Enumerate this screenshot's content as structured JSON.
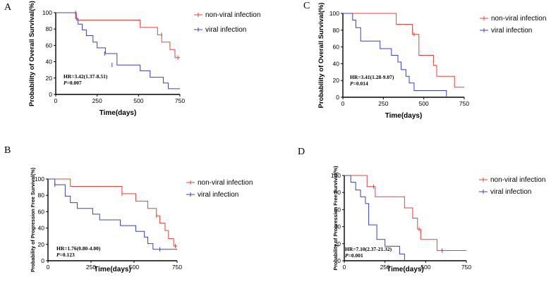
{
  "figure": {
    "colors": {
      "non_viral": "#e8413a",
      "viral": "#3b3fd1"
    }
  },
  "chart_data": [
    {
      "type": "line",
      "subtype": "kaplan-meier",
      "panel": "A",
      "xlabel": "Time(days)",
      "ylabel": "Probability of Overall Survival(%)",
      "xlim": [
        0,
        750
      ],
      "ylim": [
        0,
        100
      ],
      "xticks": [
        0,
        250,
        500,
        750
      ],
      "yticks": [
        0,
        20,
        40,
        60,
        80,
        100
      ],
      "hr_text": "HR=3.42(1.37-8.51)",
      "p_label": "P",
      "p_value": "=0.007",
      "series": [
        {
          "name": "non-viral infection",
          "color": "#e8413a",
          "x": [
            0,
            125,
            510,
            615,
            640,
            690,
            720,
            740,
            750
          ],
          "y": [
            100,
            91,
            82,
            73,
            64,
            55,
            45,
            45,
            45
          ],
          "censored": [
            [
              120,
              100
            ],
            [
              640,
              73
            ],
            [
              738,
              45
            ]
          ]
        },
        {
          "name": "viral infection",
          "color": "#3b3fd1",
          "x": [
            0,
            120,
            135,
            160,
            185,
            225,
            250,
            300,
            370,
            510,
            570,
            650,
            680,
            750
          ],
          "y": [
            100,
            93,
            86,
            79,
            72,
            64,
            57,
            50,
            36,
            29,
            21,
            14,
            7,
            7
          ],
          "censored": [
            [
              295,
              50
            ],
            [
              340,
              36
            ]
          ]
        }
      ]
    },
    {
      "type": "line",
      "subtype": "kaplan-meier",
      "panel": "B",
      "xlabel": "Time(days)",
      "ylabel": "Probability of Progression Free Survival(%)",
      "xlim": [
        0,
        750
      ],
      "ylim": [
        0,
        100
      ],
      "xticks": [
        0,
        250,
        500,
        750
      ],
      "yticks": [
        0,
        20,
        40,
        60,
        80,
        100
      ],
      "hr_text": "HR=1.76(0.80-4.00)",
      "p_label": "P",
      "p_value": "=0.123",
      "series": [
        {
          "name": "non-viral infection",
          "color": "#e8413a",
          "x": [
            0,
            130,
            430,
            510,
            580,
            630,
            650,
            680,
            700,
            730,
            750
          ],
          "y": [
            100,
            91,
            82,
            73,
            64,
            55,
            46,
            37,
            27,
            18,
            18
          ],
          "censored": [
            [
              430,
              82
            ],
            [
              630,
              55
            ],
            [
              740,
              18
            ]
          ]
        },
        {
          "name": "viral infection",
          "color": "#3b3fd1",
          "x": [
            0,
            40,
            100,
            130,
            170,
            260,
            300,
            420,
            510,
            560,
            580,
            610,
            750
          ],
          "y": [
            100,
            93,
            79,
            71,
            64,
            57,
            50,
            43,
            36,
            29,
            21,
            14,
            14
          ],
          "censored": [
            [
              40,
              93
            ],
            [
              650,
              14
            ]
          ]
        }
      ]
    },
    {
      "type": "line",
      "subtype": "kaplan-meier",
      "panel": "C",
      "xlabel": "Time(days)",
      "ylabel": "Probability of  Overall Survival(%)",
      "xlim": [
        0,
        750
      ],
      "ylim": [
        0,
        100
      ],
      "xticks": [
        0,
        250,
        500,
        750
      ],
      "yticks": [
        0,
        20,
        40,
        60,
        80,
        100
      ],
      "hr_text": "HR=3.41(1.28-9.07)",
      "p_label": "P",
      "p_value": "=0.014",
      "series": [
        {
          "name": "non-viral infection",
          "color": "#e8413a",
          "x": [
            0,
            330,
            430,
            470,
            560,
            580,
            690,
            750
          ],
          "y": [
            100,
            87,
            75,
            50,
            38,
            25,
            12,
            12
          ],
          "censored": [
            [
              440,
              75
            ]
          ]
        },
        {
          "name": "viral infection",
          "color": "#3b3fd1",
          "x": [
            0,
            60,
            80,
            110,
            230,
            300,
            340,
            360,
            390,
            410,
            440,
            640
          ],
          "y": [
            100,
            92,
            83,
            67,
            58,
            50,
            42,
            33,
            25,
            17,
            8,
            0
          ],
          "censored": []
        }
      ]
    },
    {
      "type": "line",
      "subtype": "kaplan-meier",
      "panel": "D",
      "xlabel": "Time(days)",
      "ylabel": "Probability of Progression Free Survival(%)",
      "xlim": [
        0,
        750
      ],
      "ylim": [
        0,
        100
      ],
      "xticks": [
        0,
        250,
        500,
        750
      ],
      "yticks": [
        0,
        20,
        40,
        60,
        80,
        100
      ],
      "hr_text": "HR=7.10(2.37-21.32)",
      "p_label": "P",
      "p_value": "=0.001",
      "series": [
        {
          "name": "non-viral infection",
          "color": "#e8413a",
          "x": [
            0,
            140,
            190,
            370,
            420,
            450,
            470,
            570,
            750
          ],
          "y": [
            100,
            87,
            75,
            62,
            50,
            37,
            25,
            12,
            12
          ],
          "censored": [
            [
              180,
              87
            ],
            [
              460,
              37
            ],
            [
              600,
              12
            ]
          ]
        },
        {
          "name": "viral infection",
          "color": "#3b3fd1",
          "x": [
            0,
            40,
            70,
            100,
            130,
            150,
            200,
            250,
            340,
            370
          ],
          "y": [
            100,
            92,
            83,
            75,
            67,
            42,
            25,
            17,
            8,
            0
          ],
          "censored": []
        }
      ]
    }
  ]
}
